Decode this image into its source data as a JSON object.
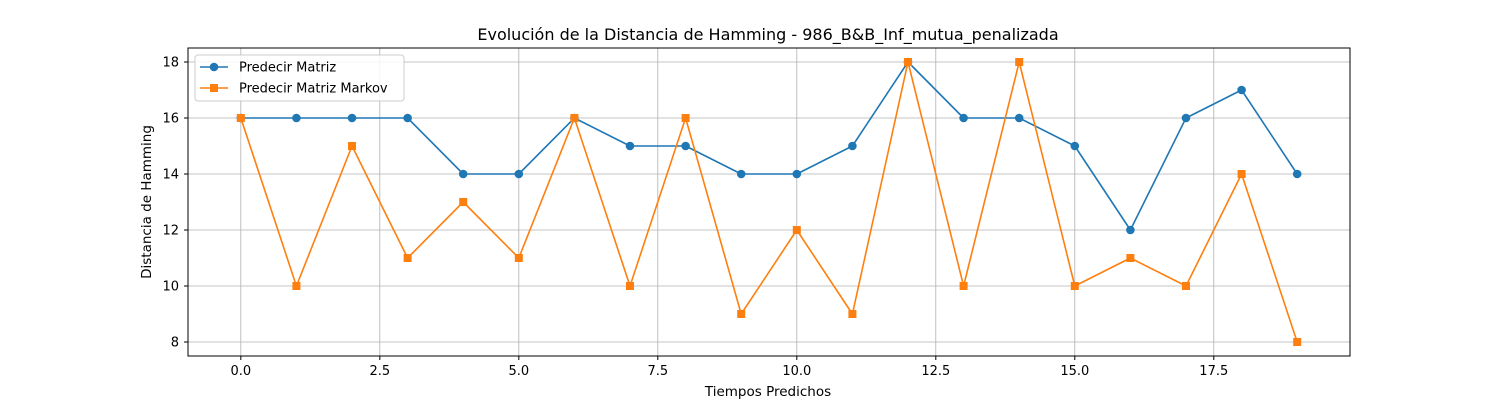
{
  "chart_data": {
    "type": "line",
    "title": "Evolución de la Distancia de Hamming - 986_B&B_Inf_mutua_penalizada",
    "xlabel": "Tiempos Predichos",
    "ylabel": "Distancia de Hamming",
    "xlim": [
      -0.95,
      19.95
    ],
    "ylim": [
      7.5,
      18.5
    ],
    "xticks": [
      0,
      2.5,
      5,
      7.5,
      10,
      12.5,
      15,
      17.5
    ],
    "xtick_labels": [
      "0.0",
      "2.5",
      "5.0",
      "7.5",
      "10.0",
      "12.5",
      "15.0",
      "17.5"
    ],
    "yticks": [
      8,
      10,
      12,
      14,
      16,
      18
    ],
    "ytick_labels": [
      "8",
      "10",
      "12",
      "14",
      "16",
      "18"
    ],
    "grid": true,
    "legend_position": "top-left",
    "x": [
      0,
      1,
      2,
      3,
      4,
      5,
      6,
      7,
      8,
      9,
      10,
      11,
      12,
      13,
      14,
      15,
      16,
      17,
      18,
      19
    ],
    "series": [
      {
        "name": "Predecir Matriz",
        "color": "#1f77b4",
        "marker": "circle",
        "values": [
          16,
          16,
          16,
          16,
          14,
          14,
          16,
          15,
          15,
          14,
          14,
          15,
          18,
          16,
          16,
          15,
          12,
          16,
          17,
          14
        ]
      },
      {
        "name": "Predecir Matriz Markov",
        "color": "#ff7f0e",
        "marker": "square",
        "values": [
          16,
          10,
          15,
          11,
          13,
          11,
          16,
          10,
          16,
          9,
          12,
          9,
          18,
          10,
          18,
          10,
          11,
          10,
          14,
          8
        ]
      }
    ]
  }
}
